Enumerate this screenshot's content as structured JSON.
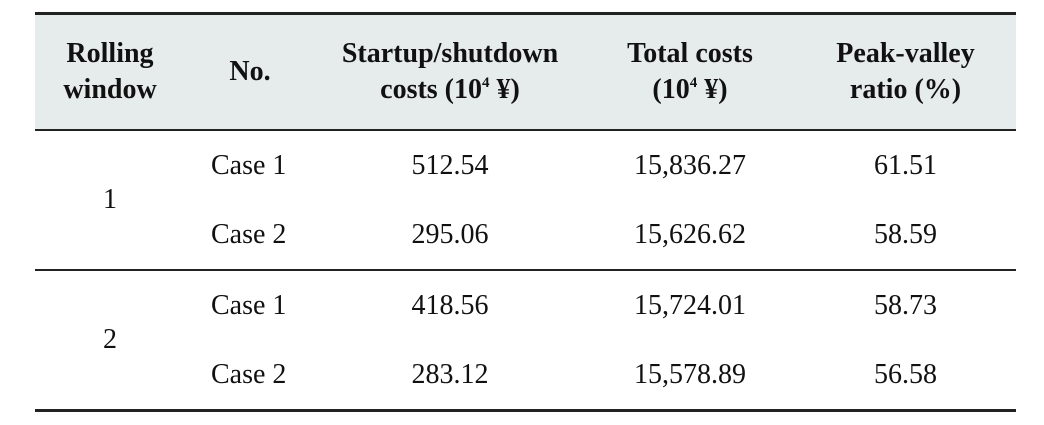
{
  "table": {
    "headers": {
      "window": [
        "Rolling",
        "window"
      ],
      "no": "No.",
      "startup": {
        "line1": "Startup/shutdown",
        "line2_pre": "costs (10",
        "sup": "4",
        "line2_post": " ¥)"
      },
      "total": {
        "line1": "Total costs",
        "line2_pre": "(10",
        "sup": "4",
        "line2_post": " ¥)"
      },
      "peak": [
        "Peak-valley",
        "ratio (%)"
      ]
    },
    "groups": [
      {
        "window": "1",
        "rows": [
          {
            "case": "Case 1",
            "startup": "512.54",
            "total": "15,836.27",
            "peak": "61.51"
          },
          {
            "case": "Case 2",
            "startup": "295.06",
            "total": "15,626.62",
            "peak": "58.59"
          }
        ]
      },
      {
        "window": "2",
        "rows": [
          {
            "case": "Case 1",
            "startup": "418.56",
            "total": "15,724.01",
            "peak": "58.73"
          },
          {
            "case": "Case 2",
            "startup": "283.12",
            "total": "15,578.89",
            "peak": "56.58"
          }
        ]
      }
    ]
  }
}
